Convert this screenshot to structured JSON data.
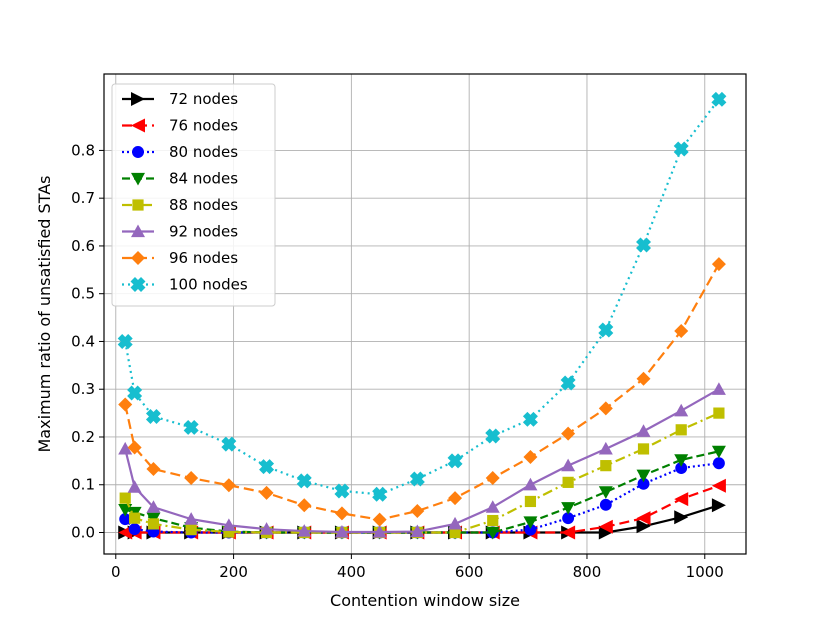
{
  "chart_data": {
    "type": "line",
    "title": "",
    "xlabel": "Contention window size",
    "ylabel": "Maximum ratio of unsatisfied STAs",
    "xlim": [
      -20,
      1070
    ],
    "ylim": [
      -0.045,
      0.96
    ],
    "xticks": [
      0,
      200,
      400,
      600,
      800,
      1000
    ],
    "yticks": [
      0.0,
      0.1,
      0.2,
      0.3,
      0.4,
      0.5,
      0.6,
      0.7,
      0.8
    ],
    "grid": true,
    "legend_position": "top-left",
    "x": [
      16,
      32,
      64,
      128,
      192,
      256,
      320,
      384,
      448,
      512,
      576,
      640,
      704,
      768,
      832,
      896,
      960,
      1024
    ],
    "series": [
      {
        "name": "72 nodes",
        "color": "#000000",
        "marker": "triangle-right",
        "dash": "",
        "values": [
          0,
          0,
          0,
          0,
          0,
          0,
          0,
          0,
          0,
          0,
          0,
          0,
          0,
          0,
          0,
          0.013,
          0.032,
          0.057
        ]
      },
      {
        "name": "76 nodes",
        "color": "#ff0000",
        "marker": "triangle-left",
        "dash": "10,5",
        "values": [
          0,
          0,
          0,
          0,
          0,
          0,
          0,
          0,
          0,
          0,
          0,
          0,
          0,
          0,
          0.012,
          0.03,
          0.07,
          0.098
        ]
      },
      {
        "name": "80 nodes",
        "color": "#0000ff",
        "marker": "circle",
        "dash": "2,3",
        "values": [
          0.028,
          0.007,
          0.002,
          0,
          0,
          0,
          0,
          0,
          0,
          0,
          0,
          0,
          0.006,
          0.03,
          0.058,
          0.102,
          0.135,
          0.145
        ]
      },
      {
        "name": "84 nodes",
        "color": "#008000",
        "marker": "triangle-down",
        "dash": "8,4",
        "values": [
          0.048,
          0.042,
          0.03,
          0.01,
          0.002,
          0,
          0,
          0,
          0,
          0,
          0,
          0,
          0.022,
          0.052,
          0.085,
          0.12,
          0.152,
          0.17
        ]
      },
      {
        "name": "88 nodes",
        "color": "#bfbf00",
        "marker": "square",
        "dash": "10,4,2,4",
        "values": [
          0.072,
          0.03,
          0.018,
          0.006,
          0.001,
          0,
          0,
          0,
          0,
          0,
          0,
          0.025,
          0.065,
          0.105,
          0.14,
          0.175,
          0.215,
          0.25
        ]
      },
      {
        "name": "92 nodes",
        "color": "#9467bd",
        "marker": "triangle-up",
        "dash": "",
        "values": [
          0.175,
          0.095,
          0.053,
          0.028,
          0.015,
          0.007,
          0.003,
          0.001,
          0.001,
          0.002,
          0.018,
          0.053,
          0.1,
          0.14,
          0.175,
          0.212,
          0.255,
          0.3
        ]
      },
      {
        "name": "96 nodes",
        "color": "#ff7f0e",
        "marker": "diamond",
        "dash": "10,5",
        "values": [
          0.268,
          0.178,
          0.133,
          0.114,
          0.099,
          0.083,
          0.057,
          0.04,
          0.027,
          0.045,
          0.072,
          0.114,
          0.158,
          0.207,
          0.26,
          0.322,
          0.422,
          0.562
        ]
      },
      {
        "name": "100 nodes",
        "color": "#17becf",
        "marker": "x",
        "dash": "2,4",
        "values": [
          0.4,
          0.292,
          0.243,
          0.22,
          0.185,
          0.138,
          0.108,
          0.087,
          0.08,
          0.112,
          0.15,
          0.202,
          0.237,
          0.313,
          0.424,
          0.602,
          0.803,
          0.907
        ]
      }
    ]
  }
}
